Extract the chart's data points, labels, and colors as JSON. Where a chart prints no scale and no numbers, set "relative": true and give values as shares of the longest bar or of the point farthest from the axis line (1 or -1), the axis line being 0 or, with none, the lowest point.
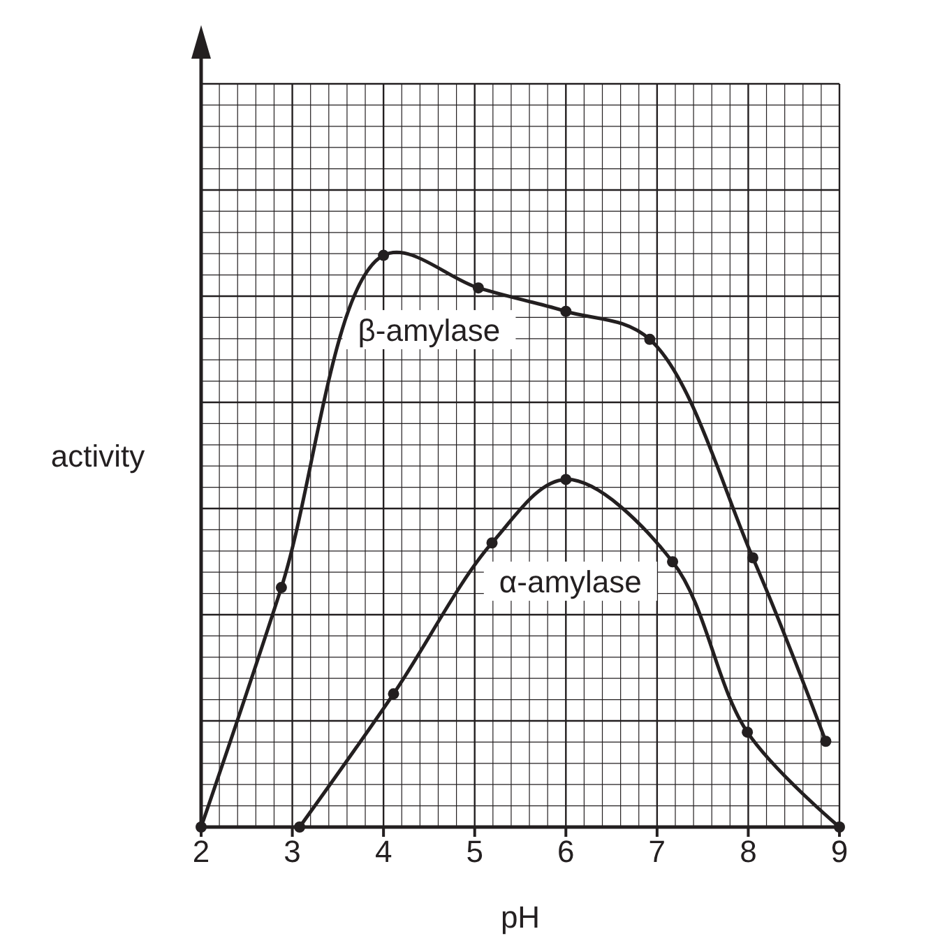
{
  "chart_data": {
    "type": "line",
    "xlabel": "pH",
    "ylabel": "activity",
    "relative": true,
    "xlim": [
      2,
      9
    ],
    "xticks": [
      2,
      3,
      4,
      5,
      6,
      7,
      8,
      9
    ],
    "grid": true,
    "marker": "circle",
    "line_style": "solid",
    "series": [
      {
        "name": "β-amylase",
        "color": "#231f20",
        "x": [
          2,
          2.88,
          4,
          5.04,
          6,
          6.92,
          8.05,
          8.85
        ],
        "values": [
          0,
          0.419,
          1,
          0.943,
          0.902,
          0.853,
          0.471,
          0.15
        ]
      },
      {
        "name": "α-amylase",
        "color": "#231f20",
        "x": [
          3.08,
          4.11,
          5.19,
          6,
          7.17,
          7.99,
          9
        ],
        "values": [
          0,
          0.233,
          0.497,
          0.608,
          0.464,
          0.166,
          0
        ]
      }
    ]
  }
}
